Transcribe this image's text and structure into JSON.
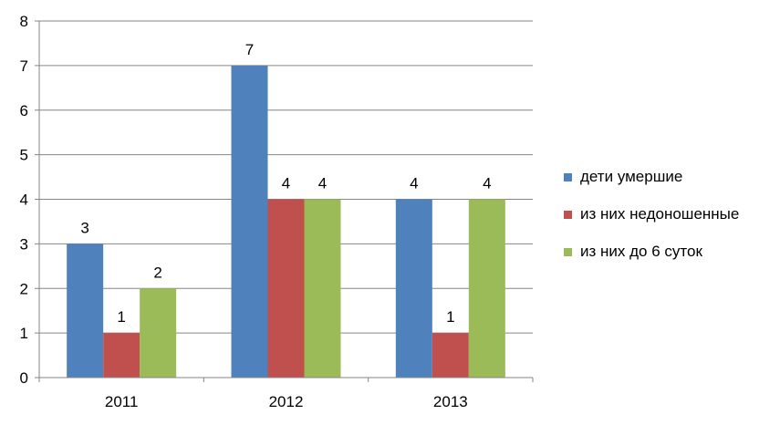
{
  "chart_data": {
    "type": "bar",
    "categories": [
      "2011",
      "2012",
      "2013"
    ],
    "series": [
      {
        "name": "дети умершие",
        "values": [
          3,
          7,
          4
        ],
        "color": "#4F81BD"
      },
      {
        "name": "из них недоношенные",
        "values": [
          1,
          4,
          1
        ],
        "color": "#C0504D"
      },
      {
        "name": "из них до 6 суток",
        "values": [
          2,
          4,
          4
        ],
        "color": "#9BBB59"
      }
    ],
    "ylim": [
      0,
      8
    ],
    "yticks": [
      0,
      1,
      2,
      3,
      4,
      5,
      6,
      7,
      8
    ],
    "grid": true,
    "data_labels": true,
    "legend_position": "right"
  }
}
